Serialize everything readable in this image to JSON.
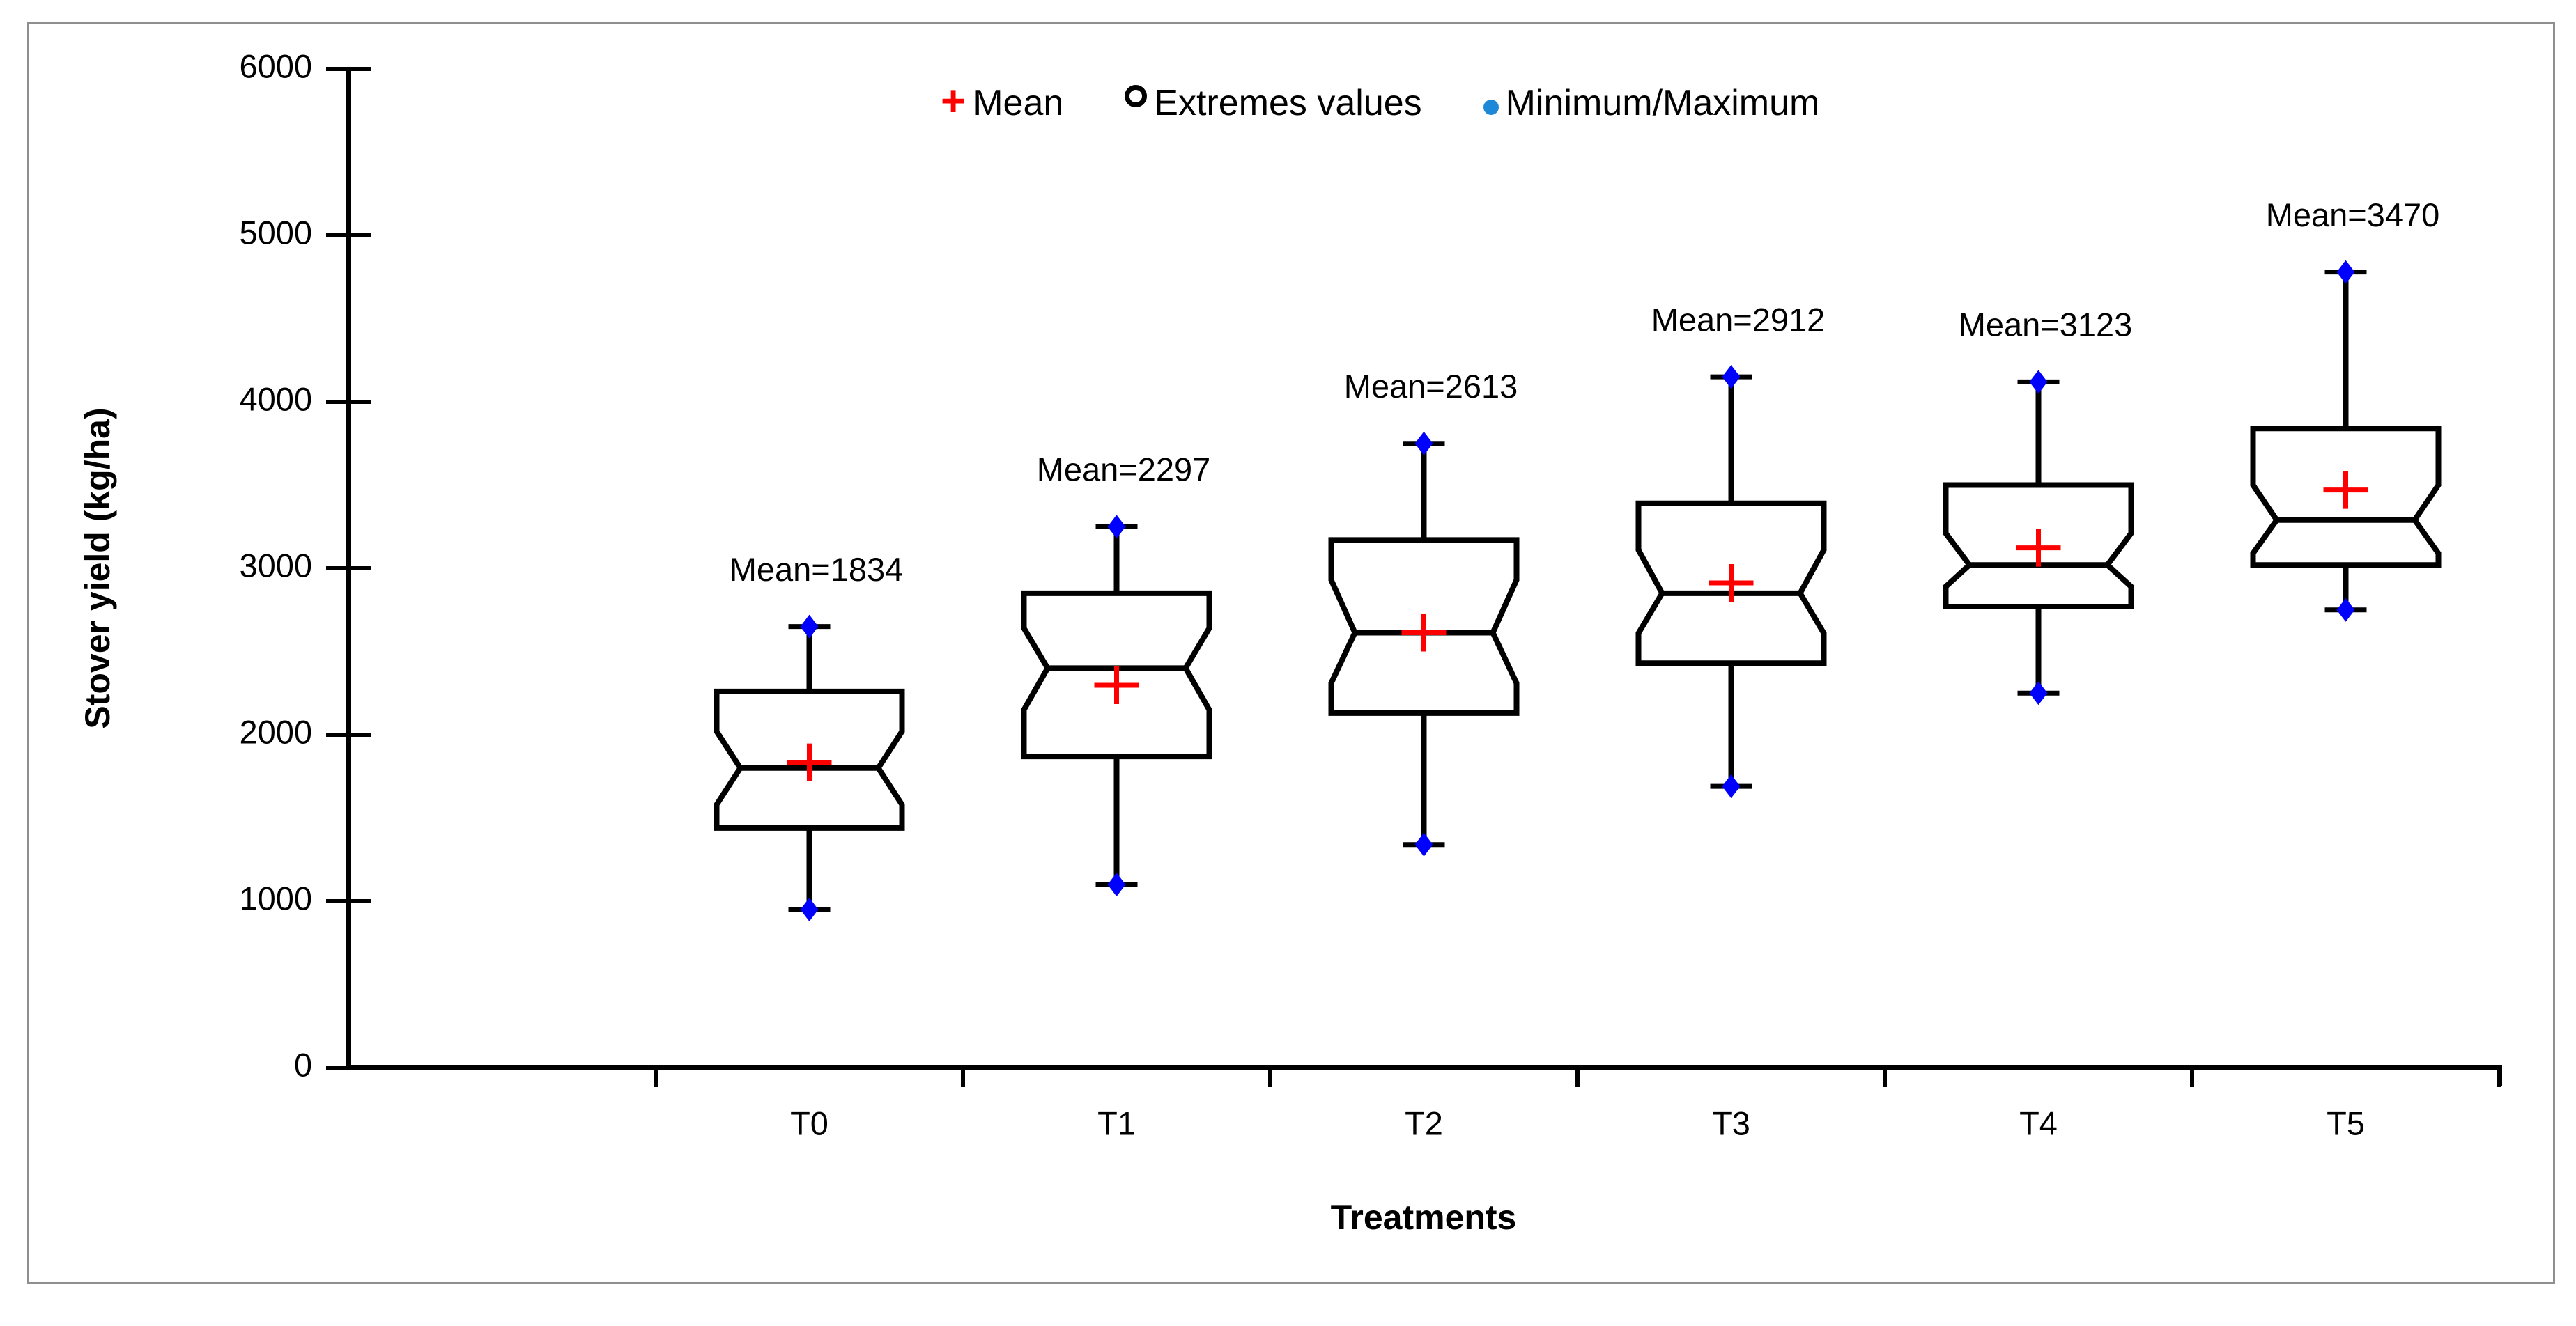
{
  "figure": {
    "border_color": "#8f8f8f",
    "background_color": "#ffffff"
  },
  "chart_data": {
    "type": "boxplot",
    "title": "",
    "xlabel": "Treatments",
    "ylabel": "Stover yield (kg/ha)",
    "ylim": [
      0,
      6000
    ],
    "ytick_step": 1000,
    "ytick_labels": [
      "0",
      "1000",
      "2000",
      "3000",
      "4000",
      "5000",
      "6000"
    ],
    "grid": false,
    "categories": [
      "T0",
      "T1",
      "T2",
      "T3",
      "T4",
      "T5"
    ],
    "legend": {
      "position": "top-center",
      "items": [
        {
          "marker": "plus-icon",
          "color": "#ff0000",
          "label": "Mean"
        },
        {
          "marker": "open-circle-icon",
          "color": "#000000",
          "label": "Extremes values"
        },
        {
          "marker": "dot-icon",
          "color": "#1e88d8",
          "label": "Minimum/Maximum"
        }
      ]
    },
    "series": [
      {
        "label": "T0",
        "min": 950,
        "q1": 1440,
        "median": 1800,
        "q3": 2260,
        "max": 2650,
        "mean": 1834,
        "mean_label": "Mean=1834",
        "notch_lower": 1580,
        "notch_upper": 2020
      },
      {
        "label": "T1",
        "min": 1100,
        "q1": 1870,
        "median": 2400,
        "q3": 2850,
        "max": 3250,
        "mean": 2297,
        "mean_label": "Mean=2297",
        "notch_lower": 2150,
        "notch_upper": 2640
      },
      {
        "label": "T2",
        "min": 1340,
        "q1": 2130,
        "median": 2613,
        "q3": 3170,
        "max": 3750,
        "mean": 2613,
        "mean_label": "Mean=2613",
        "notch_lower": 2310,
        "notch_upper": 2930
      },
      {
        "label": "T3",
        "min": 1690,
        "q1": 2430,
        "median": 2850,
        "q3": 3390,
        "max": 4150,
        "mean": 2912,
        "mean_label": "Mean=2912",
        "notch_lower": 2610,
        "notch_upper": 3110
      },
      {
        "label": "T4",
        "min": 2250,
        "q1": 2770,
        "median": 3020,
        "q3": 3500,
        "max": 4120,
        "mean": 3123,
        "mean_label": "Mean=3123",
        "notch_lower": 2890,
        "notch_upper": 3210
      },
      {
        "label": "T5",
        "min": 2750,
        "q1": 3020,
        "median": 3290,
        "q3": 3840,
        "max": 4780,
        "mean": 3470,
        "mean_label": "Mean=3470",
        "notch_lower": 3090,
        "notch_upper": 3500
      }
    ],
    "colors": {
      "box_stroke": "#000000",
      "box_fill": "#ffffff",
      "mean_marker": "#ff0000",
      "minmax_marker": "#0000ff",
      "axis": "#000000",
      "text": "#000000"
    }
  }
}
